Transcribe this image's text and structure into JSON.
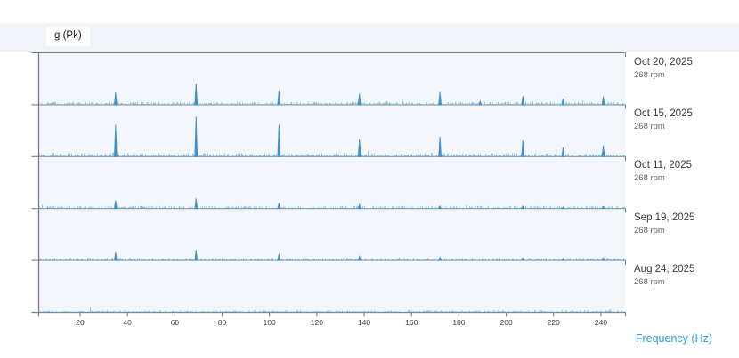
{
  "header": {
    "amplitude_units": "g (Pk)"
  },
  "colors": {
    "accent_blue": "#2e9bd9",
    "trace_blue": "#3f92ca",
    "noise_blue": "#6aadd9",
    "divider_gray": "#8f9499",
    "frame_gray": "#787d82",
    "plot_background": "#f3f6fa",
    "header_band_background": "#f0f3f7",
    "tick_text": "#3f3f3f"
  },
  "chart_data": {
    "type": "line",
    "variant": "stacked-waterfall-spectra",
    "title": "",
    "xlabel": "Frequency (Hz)",
    "ylabel": "g (Pk)",
    "xlim": [
      0,
      250
    ],
    "x_ticks": [
      20,
      40,
      60,
      80,
      100,
      120,
      140,
      160,
      180,
      200,
      220,
      240
    ],
    "grid": false,
    "legend_position": "right-of-each-band",
    "amplitude_units": "relative fraction of band height",
    "series": [
      {
        "label": "Oct 20, 2025",
        "rpm": "268 rpm",
        "noise_level": 0.03,
        "peaks": [
          [
            35,
            0.24
          ],
          [
            69,
            0.42
          ],
          [
            104,
            0.27
          ],
          [
            138,
            0.22
          ],
          [
            172,
            0.25
          ],
          [
            189,
            0.07
          ],
          [
            207,
            0.17
          ],
          [
            224,
            0.12
          ],
          [
            241,
            0.16
          ]
        ]
      },
      {
        "label": "Oct 15, 2025",
        "rpm": "268 rpm",
        "noise_level": 0.035,
        "peaks": [
          [
            35,
            0.63
          ],
          [
            69,
            0.79
          ],
          [
            104,
            0.63
          ],
          [
            138,
            0.34
          ],
          [
            172,
            0.39
          ],
          [
            207,
            0.32
          ],
          [
            224,
            0.18
          ],
          [
            241,
            0.22
          ]
        ]
      },
      {
        "label": "Oct 11, 2025",
        "rpm": "268 rpm",
        "noise_level": 0.025,
        "peaks": [
          [
            35,
            0.16
          ],
          [
            69,
            0.2
          ],
          [
            104,
            0.11
          ],
          [
            138,
            0.08
          ],
          [
            172,
            0.05
          ],
          [
            207,
            0.05
          ],
          [
            224,
            0.03
          ],
          [
            241,
            0.04
          ]
        ]
      },
      {
        "label": "Sep 19, 2025",
        "rpm": "268 rpm",
        "noise_level": 0.025,
        "peaks": [
          [
            35,
            0.16
          ],
          [
            69,
            0.21
          ],
          [
            104,
            0.13
          ],
          [
            138,
            0.08
          ],
          [
            172,
            0.06
          ],
          [
            207,
            0.05
          ],
          [
            224,
            0.04
          ],
          [
            241,
            0.05
          ]
        ]
      },
      {
        "label": "Aug 24, 2025",
        "rpm": "268 rpm",
        "noise_level": 0.02,
        "peaks": []
      }
    ]
  }
}
